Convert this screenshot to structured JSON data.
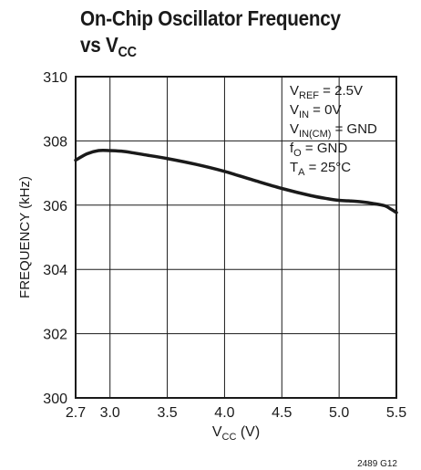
{
  "chart_data": {
    "type": "line",
    "title_line1": "On-Chip Oscillator Frequency",
    "title_line2_prefix": "vs V",
    "title_line2_sub": "CC",
    "xlabel_prefix": "V",
    "xlabel_sub": "CC",
    "xlabel_suffix": " (V)",
    "ylabel": "FREQUENCY (kHz)",
    "xlim": [
      2.7,
      5.5
    ],
    "ylim": [
      300,
      310
    ],
    "x_ticks": [
      2.7,
      3.0,
      3.5,
      4.0,
      4.5,
      5.0,
      5.5
    ],
    "x_tick_labels": [
      "2.7",
      "3.0",
      "3.5",
      "4.0",
      "4.5",
      "5.0",
      "5.5"
    ],
    "y_ticks": [
      300,
      302,
      304,
      306,
      308,
      310
    ],
    "y_tick_labels": [
      "300",
      "302",
      "304",
      "306",
      "308",
      "310"
    ],
    "grid": true,
    "series": [
      {
        "x": [
          2.7,
          2.8,
          2.9,
          3.0,
          3.1,
          3.2,
          3.3,
          3.5,
          3.75,
          4.0,
          4.25,
          4.5,
          4.75,
          4.9,
          5.0,
          5.1,
          5.2,
          5.3,
          5.4,
          5.45,
          5.5
        ],
        "y": [
          307.4,
          307.6,
          307.7,
          307.7,
          307.68,
          307.63,
          307.57,
          307.45,
          307.27,
          307.05,
          306.78,
          306.52,
          306.3,
          306.2,
          306.15,
          306.13,
          306.1,
          306.05,
          305.98,
          305.88,
          305.77
        ]
      }
    ],
    "annotations": [
      {
        "main": "V",
        "sub": "REF",
        "rest": " = 2.5V"
      },
      {
        "main": "V",
        "sub": "IN",
        "rest": " = 0V"
      },
      {
        "main": "V",
        "sub": "IN(CM)",
        "rest": " = GND"
      },
      {
        "main": "f",
        "sub": "O",
        "rest": " = GND"
      },
      {
        "main": "T",
        "sub": "A",
        "rest": " = 25°C"
      }
    ],
    "figure_id": "2489 G12"
  }
}
